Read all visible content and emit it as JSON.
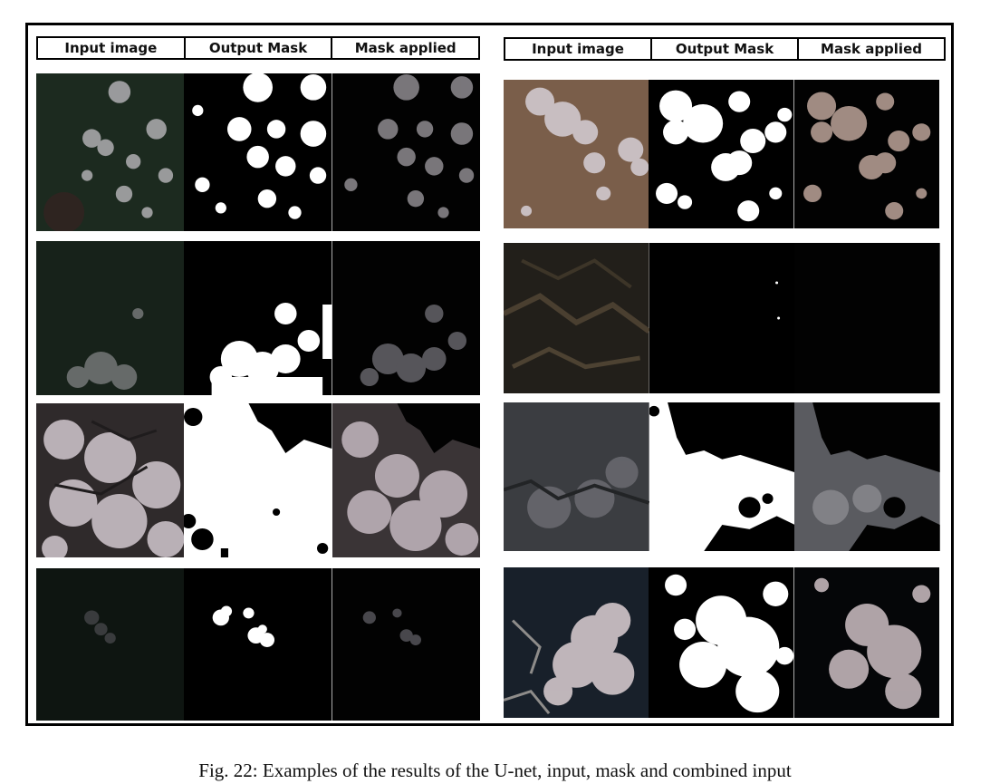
{
  "left_group": {
    "headers": [
      "Input image",
      "Output Mask",
      "Mask applied"
    ]
  },
  "right_group": {
    "headers": [
      "Input image",
      "Output Mask",
      "Mask applied"
    ]
  },
  "caption": "Fig. 22: Examples of the results of the U-net, input, mask and combined input"
}
